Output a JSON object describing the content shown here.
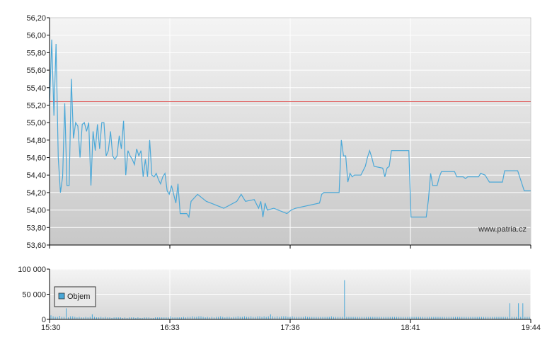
{
  "chart_data": [
    {
      "type": "line",
      "watermark": "www.patria.cz",
      "x_tick_labels": [
        "15:30",
        "16:33",
        "17:36",
        "18:41",
        "19:44"
      ],
      "y_tick_labels": [
        "53,60",
        "53,80",
        "54,00",
        "54,20",
        "54,40",
        "54,60",
        "54,80",
        "55,00",
        "55,20",
        "55,40",
        "55,60",
        "55,80",
        "56,00",
        "56,20"
      ],
      "ylim": [
        53.6,
        56.2
      ],
      "grid": true,
      "reference_line": {
        "value": 55.24,
        "color": "#e06060"
      },
      "series": [
        {
          "color": "#4aa8d8",
          "points": [
            [
              0,
              55.2
            ],
            [
              1,
              55.95
            ],
            [
              2,
              55.08
            ],
            [
              3,
              55.9
            ],
            [
              4,
              54.6
            ],
            [
              5,
              54.2
            ],
            [
              6,
              54.38
            ],
            [
              7,
              55.22
            ],
            [
              8,
              54.28
            ],
            [
              9,
              54.28
            ],
            [
              10,
              55.5
            ],
            [
              11,
              54.82
            ],
            [
              12,
              55.0
            ],
            [
              13,
              54.96
            ],
            [
              14,
              54.6
            ],
            [
              15,
              54.98
            ],
            [
              16,
              55.0
            ],
            [
              17,
              54.9
            ],
            [
              18,
              55.0
            ],
            [
              19,
              54.28
            ],
            [
              20,
              54.9
            ],
            [
              21,
              54.68
            ],
            [
              22,
              54.98
            ],
            [
              23,
              54.7
            ],
            [
              24,
              55.0
            ],
            [
              25,
              55.0
            ],
            [
              26,
              54.62
            ],
            [
              27,
              54.68
            ],
            [
              28,
              54.9
            ],
            [
              29,
              54.62
            ],
            [
              30,
              54.58
            ],
            [
              31,
              54.62
            ],
            [
              32,
              54.85
            ],
            [
              33,
              54.7
            ],
            [
              34,
              55.02
            ],
            [
              35,
              54.4
            ],
            [
              36,
              54.68
            ],
            [
              37,
              54.62
            ],
            [
              38,
              54.58
            ],
            [
              39,
              54.52
            ],
            [
              40,
              54.7
            ],
            [
              41,
              54.62
            ],
            [
              42,
              54.68
            ],
            [
              43,
              54.38
            ],
            [
              44,
              54.58
            ],
            [
              45,
              54.38
            ],
            [
              46,
              54.8
            ],
            [
              47,
              54.4
            ],
            [
              48,
              54.38
            ],
            [
              49,
              54.42
            ],
            [
              50,
              54.35
            ],
            [
              51,
              54.3
            ],
            [
              52,
              54.38
            ],
            [
              53,
              54.42
            ],
            [
              54,
              54.22
            ],
            [
              55,
              54.18
            ],
            [
              56,
              54.28
            ],
            [
              57,
              54.18
            ],
            [
              58,
              54.08
            ],
            [
              59,
              54.3
            ],
            [
              60,
              53.96
            ],
            [
              63,
              53.96
            ],
            [
              64,
              53.92
            ],
            [
              65,
              54.1
            ],
            [
              68,
              54.18
            ],
            [
              72,
              54.1
            ],
            [
              74,
              54.08
            ],
            [
              80,
              54.02
            ],
            [
              86,
              54.1
            ],
            [
              88,
              54.18
            ],
            [
              90,
              54.1
            ],
            [
              94,
              54.12
            ],
            [
              96,
              54.02
            ],
            [
              97,
              54.1
            ],
            [
              98,
              53.92
            ],
            [
              99,
              54.08
            ],
            [
              100,
              54.0
            ],
            [
              103,
              54.02
            ],
            [
              107,
              53.98
            ],
            [
              109,
              53.96
            ],
            [
              111,
              54.0
            ],
            [
              113,
              54.02
            ],
            [
              124,
              54.08
            ],
            [
              125,
              54.18
            ],
            [
              126,
              54.2
            ],
            [
              133,
              54.2
            ],
            [
              134,
              54.8
            ],
            [
              135,
              54.62
            ],
            [
              136,
              54.62
            ],
            [
              137,
              54.32
            ],
            [
              138,
              54.42
            ],
            [
              139,
              54.38
            ],
            [
              140,
              54.4
            ],
            [
              143,
              54.4
            ],
            [
              145,
              54.5
            ],
            [
              146,
              54.6
            ],
            [
              147,
              54.68
            ],
            [
              148,
              54.6
            ],
            [
              149,
              54.5
            ],
            [
              153,
              54.48
            ],
            [
              154,
              54.38
            ],
            [
              155,
              54.48
            ],
            [
              156,
              54.5
            ],
            [
              157,
              54.68
            ],
            [
              165,
              54.68
            ],
            [
              166,
              53.92
            ],
            [
              173,
              53.92
            ],
            [
              174,
              54.12
            ],
            [
              175,
              54.42
            ],
            [
              176,
              54.28
            ],
            [
              178,
              54.28
            ],
            [
              179,
              54.38
            ],
            [
              180,
              54.44
            ],
            [
              186,
              54.44
            ],
            [
              187,
              54.38
            ],
            [
              190,
              54.38
            ],
            [
              191,
              54.36
            ],
            [
              192,
              54.38
            ],
            [
              197,
              54.38
            ],
            [
              198,
              54.42
            ],
            [
              200,
              54.4
            ],
            [
              202,
              54.32
            ],
            [
              208,
              54.32
            ],
            [
              209,
              54.45
            ],
            [
              215,
              54.45
            ],
            [
              218,
              54.22
            ],
            [
              221,
              54.22
            ]
          ]
        }
      ]
    },
    {
      "type": "bar",
      "x_tick_labels": [
        "15:30",
        "16:33",
        "17:36",
        "18:41",
        "19:44"
      ],
      "y_tick_labels": [
        "0",
        "50 000",
        "100 000"
      ],
      "ylim": [
        0,
        100000
      ],
      "grid": true,
      "legend": {
        "label": "Objem",
        "placement": "top-left"
      },
      "series": [
        {
          "name": "Objem",
          "color": "#4aa8d8",
          "values": [
            8000,
            6000,
            5000,
            5000,
            7000,
            5000,
            5000,
            22000,
            4000,
            6000,
            6000,
            5000,
            4000,
            5000,
            4000,
            4000,
            5000,
            4000,
            5000,
            10000,
            5000,
            4000,
            4000,
            5000,
            4000,
            5000,
            4000,
            4000,
            3000,
            4000,
            4000,
            4000,
            4000,
            3000,
            4000,
            3000,
            4000,
            4000,
            4000,
            3000,
            4000,
            3000,
            3000,
            4000,
            4000,
            4000,
            3000,
            3000,
            4000,
            4000,
            4000,
            4000,
            4000,
            4000,
            4000,
            6000,
            4000,
            4000,
            4000,
            4000,
            4000,
            5000,
            4000,
            5000,
            5000,
            6000,
            5000,
            5000,
            6000,
            6000,
            5000,
            4000,
            5000,
            4000,
            5000,
            4000,
            5000,
            5000,
            6000,
            5000,
            4000,
            5000,
            5000,
            4000,
            5000,
            5000,
            6000,
            5000,
            5000,
            6000,
            5000,
            5000,
            6000,
            5000,
            5000,
            6000,
            6000,
            5000,
            6000,
            5000,
            6000,
            10000,
            6000,
            5000,
            6000,
            5000,
            6000,
            6000,
            6000,
            5000,
            5000,
            6000,
            5000,
            5000,
            5000,
            5000,
            5000,
            6000,
            5000,
            5000,
            5000,
            5000,
            5000,
            5000,
            5000,
            5000,
            5000,
            5000,
            5000,
            6000,
            5000,
            5000,
            5000,
            5000,
            5000,
            78000,
            5000,
            5000,
            5000,
            5000,
            5000,
            5000,
            5000,
            5000,
            5000,
            5000,
            5000,
            5000,
            5000,
            5000,
            5000,
            5000,
            5000,
            5000,
            5000,
            5000,
            5000,
            5000,
            5000,
            5000,
            5000,
            5000,
            5000,
            5000,
            5000,
            5000,
            5000,
            5000,
            5000,
            5000,
            5000,
            5000,
            5000,
            5000,
            5000,
            5000,
            5000,
            5000,
            5000,
            5000,
            5000,
            5000,
            5000,
            5000,
            5000,
            5000,
            5000,
            5000,
            5000,
            5000,
            5000,
            5000,
            5000,
            5000,
            5000,
            5000,
            5000,
            5000,
            5000,
            5000,
            5000,
            5000,
            5000,
            5000,
            5000,
            5000,
            5000,
            5000,
            5000,
            5000,
            5000,
            32000,
            5000,
            5000,
            5000,
            32000,
            5000,
            32000,
            5000,
            5000,
            5000
          ]
        }
      ]
    }
  ]
}
